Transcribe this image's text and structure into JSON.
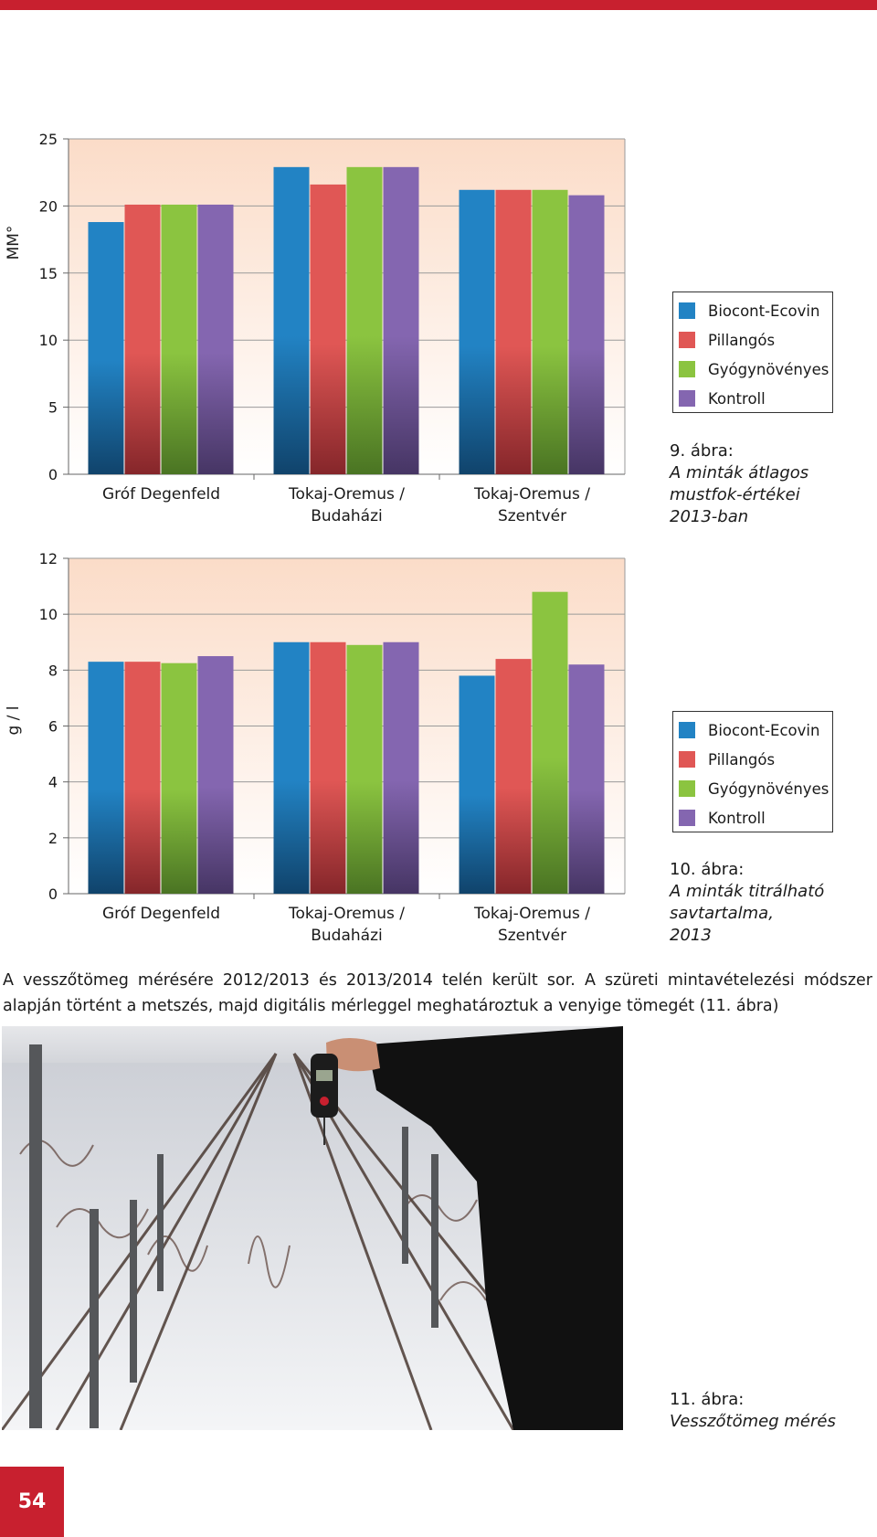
{
  "colors": {
    "accent": "#c8202f",
    "series": [
      "#2283c4",
      "#e05755",
      "#8bc440",
      "#8466b0"
    ]
  },
  "chart_data": [
    {
      "type": "bar",
      "ylabel": "MM°",
      "ylim": [
        0,
        25
      ],
      "yticks": [
        0,
        5,
        10,
        15,
        20,
        25
      ],
      "categories": [
        [
          "Gróf Degenfeld"
        ],
        [
          "Tokaj-Oremus /",
          "Budaházi"
        ],
        [
          "Tokaj-Oremus /",
          "Szentvér"
        ]
      ],
      "series": [
        {
          "name": "Biocont-Ecovin",
          "values": [
            18.8,
            22.9,
            21.2
          ]
        },
        {
          "name": "Pillangós",
          "values": [
            20.1,
            21.6,
            21.2
          ]
        },
        {
          "name": "Gyógynövényes",
          "values": [
            20.1,
            22.9,
            21.2
          ]
        },
        {
          "name": "Kontroll",
          "values": [
            20.1,
            22.9,
            20.8
          ]
        }
      ],
      "legend": "right",
      "grid": true
    },
    {
      "type": "bar",
      "ylabel": "g / l",
      "ylim": [
        0,
        12
      ],
      "yticks": [
        0,
        2,
        4,
        6,
        8,
        10,
        12
      ],
      "categories": [
        [
          "Gróf Degenfeld"
        ],
        [
          "Tokaj-Oremus /",
          "Budaházi"
        ],
        [
          "Tokaj-Oremus /",
          "Szentvér"
        ]
      ],
      "series": [
        {
          "name": "Biocont-Ecovin",
          "values": [
            8.3,
            9.0,
            7.8
          ]
        },
        {
          "name": "Pillangós",
          "values": [
            8.3,
            9.0,
            8.4
          ]
        },
        {
          "name": "Gyógynövényes",
          "values": [
            8.25,
            8.9,
            10.8
          ]
        },
        {
          "name": "Kontroll",
          "values": [
            8.5,
            9.0,
            8.2
          ]
        }
      ],
      "legend": "right",
      "grid": true
    }
  ],
  "legend1": {
    "items": [
      {
        "label": "Biocont-Ecovin"
      },
      {
        "label": "Pillangós"
      },
      {
        "label": "Gyógynövényes"
      },
      {
        "label": "Kontroll"
      }
    ]
  },
  "legend2": {
    "items": [
      {
        "label": "Biocont-Ecovin"
      },
      {
        "label": "Pillangós"
      },
      {
        "label": "Gyógynövényes"
      },
      {
        "label": "Kontroll"
      }
    ]
  },
  "caption1": {
    "title": "9. ábra:",
    "lines": [
      "A minták átlagos",
      "mustfok-értékei",
      "2013-ban"
    ]
  },
  "caption2": {
    "title": "10. ábra:",
    "lines": [
      "A minták titrálható",
      "savtartalma,",
      "2013"
    ]
  },
  "caption3": {
    "title": "11. ábra:",
    "lines": [
      "Vesszőtömeg mérés"
    ]
  },
  "body_text": "A vesszőtömeg mérésére 2012/2013 és 2013/2014 telén került sor. A szüreti mintavételezési módszer alapján történt a metszés, majd digitális mérleggel meghatároztuk a venyige tömegét (11. ábra)",
  "page_number": "54"
}
